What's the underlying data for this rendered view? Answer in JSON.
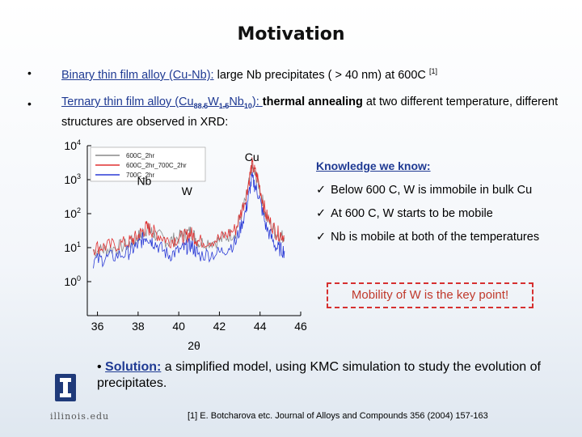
{
  "title": "Motivation",
  "bullets": [
    {
      "lead": "Binary thin film alloy (Cu-Nb):",
      "text": " large Nb precipitates ( > 40 nm) at 600C ",
      "sup": "[1]"
    },
    {
      "lead_pre": "Ternary thin film alloy (Cu",
      "sub1": "88.5",
      "mid1": "W",
      "sub2": "1.5",
      "mid2": "Nb",
      "sub3": "10",
      "lead_post": "): ",
      "bold": "thermal annealing",
      "text": " at two different temperature, different structures are observed in XRD:"
    }
  ],
  "knowledge": {
    "title": "Knowledge we know:",
    "items": [
      "Below 600 C, W is immobile in bulk Cu",
      "At 600 C, W starts to be mobile",
      "Nb is mobile at both of the temperatures"
    ],
    "key_point": "Mobility of W is the key point!"
  },
  "solution": {
    "lead": "Solution:",
    "text": " a simplified model, using KMC simulation to study the evolution of precipitates."
  },
  "reference": "[1] E. Botcharova etc. Journal of Alloys and Compounds 356 (2004) 157-163",
  "logo_text": "illinois.edu",
  "chart_data": {
    "type": "line",
    "xlabel": "2θ",
    "ylabel": "",
    "y_scale": "log",
    "xlim": [
      35.5,
      46
    ],
    "ylim": [
      0.1,
      10000
    ],
    "x_ticks": [
      36,
      38,
      40,
      42,
      44,
      46
    ],
    "y_ticks": [
      {
        "base": "10",
        "exp": "0"
      },
      {
        "base": "10",
        "exp": "1"
      },
      {
        "base": "10",
        "exp": "2"
      },
      {
        "base": "10",
        "exp": "3"
      },
      {
        "base": "10",
        "exp": "4"
      }
    ],
    "annotations": [
      {
        "text": "Cu",
        "x": 43.6,
        "y": 3500
      },
      {
        "text": "Nb",
        "x": 38.3,
        "y": 700
      },
      {
        "text": "W",
        "x": 40.4,
        "y": 350
      }
    ],
    "legend_position": "top-left",
    "series": [
      {
        "name": "600C_2hr",
        "color": "#888888",
        "points": [
          [
            35.8,
            8
          ],
          [
            36.5,
            9
          ],
          [
            37.5,
            12
          ],
          [
            38.0,
            20
          ],
          [
            38.4,
            35
          ],
          [
            38.8,
            25
          ],
          [
            39.5,
            15
          ],
          [
            40.2,
            22
          ],
          [
            40.6,
            30
          ],
          [
            41.0,
            14
          ],
          [
            42.0,
            16
          ],
          [
            42.8,
            30
          ],
          [
            43.3,
            250
          ],
          [
            43.6,
            2200
          ],
          [
            43.9,
            900
          ],
          [
            44.3,
            80
          ],
          [
            44.8,
            25
          ],
          [
            45.2,
            20
          ]
        ]
      },
      {
        "name": "600C_2hr_700C_2hr",
        "color": "#e03030",
        "points": [
          [
            35.8,
            10
          ],
          [
            36.5,
            11
          ],
          [
            37.5,
            14
          ],
          [
            38.0,
            22
          ],
          [
            38.4,
            40
          ],
          [
            38.8,
            28
          ],
          [
            39.5,
            16
          ],
          [
            40.2,
            20
          ],
          [
            40.6,
            26
          ],
          [
            41.0,
            15
          ],
          [
            42.0,
            18
          ],
          [
            42.8,
            35
          ],
          [
            43.3,
            300
          ],
          [
            43.6,
            2800
          ],
          [
            43.9,
            1000
          ],
          [
            44.3,
            90
          ],
          [
            44.8,
            28
          ],
          [
            45.2,
            22
          ]
        ]
      },
      {
        "name": "700C_2hr",
        "color": "#2b3bd6",
        "points": [
          [
            35.8,
            4
          ],
          [
            36.5,
            5
          ],
          [
            37.5,
            7
          ],
          [
            38.0,
            12
          ],
          [
            38.4,
            22
          ],
          [
            38.8,
            14
          ],
          [
            39.5,
            6
          ],
          [
            40.2,
            9
          ],
          [
            40.6,
            12
          ],
          [
            41.0,
            6
          ],
          [
            42.0,
            7
          ],
          [
            42.8,
            14
          ],
          [
            43.3,
            120
          ],
          [
            43.6,
            1100
          ],
          [
            43.9,
            400
          ],
          [
            44.3,
            40
          ],
          [
            44.8,
            10
          ],
          [
            45.2,
            8
          ]
        ]
      }
    ]
  }
}
